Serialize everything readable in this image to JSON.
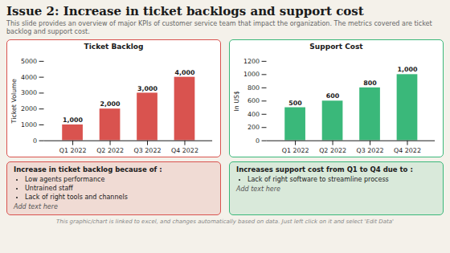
{
  "title": "Issue 2: Increase in ticket backlogs and support cost",
  "subtitle": "This slide provides an overview of major KPIs of customer service team that impact the organization. The metrics covered are ticket backlog and support cost.",
  "chart_data": [
    {
      "type": "bar",
      "title": "Ticket Backlog",
      "categories": [
        "Q1 2022",
        "Q2 2022",
        "Q3 2022",
        "Q4 2022"
      ],
      "values": [
        1000,
        2000,
        3000,
        4000
      ],
      "value_labels": [
        "1,000",
        "2,000",
        "3,000",
        "4,000"
      ],
      "data_labels": true,
      "color": "#d9534f",
      "ylabel": "Ticket Volume",
      "ylim": [
        0,
        5000
      ],
      "yticks": [
        0,
        1000,
        2000,
        3000,
        4000,
        5000
      ],
      "grid": false,
      "notes": {
        "title": "Increase in ticket backlog because of :",
        "bullets": [
          "Low agents performance",
          "Untrained staff",
          "Lack of right tools and channels"
        ],
        "footer": "Add text here"
      }
    },
    {
      "type": "bar",
      "title": "Support Cost",
      "categories": [
        "Q1 2022",
        "Q2 2022",
        "Q3 2022",
        "Q4 2022"
      ],
      "values": [
        500,
        600,
        800,
        1000
      ],
      "value_labels": [
        "500",
        "600",
        "800",
        "1,000"
      ],
      "data_labels": true,
      "color": "#3ab87a",
      "ylabel": "In US$",
      "ylim": [
        0,
        1200
      ],
      "yticks": [
        0,
        200,
        400,
        600,
        800,
        1000,
        1200
      ],
      "grid": false,
      "notes": {
        "title": "Increases support cost from Q1 to Q4 due to :",
        "bullets": [
          "Lack of right software to streamline process"
        ],
        "footer": "Add text here"
      }
    }
  ],
  "footer_note": "This graphic/chart is linked to excel, and changes automatically based on data. Just left click on it and select 'Edit Data'"
}
